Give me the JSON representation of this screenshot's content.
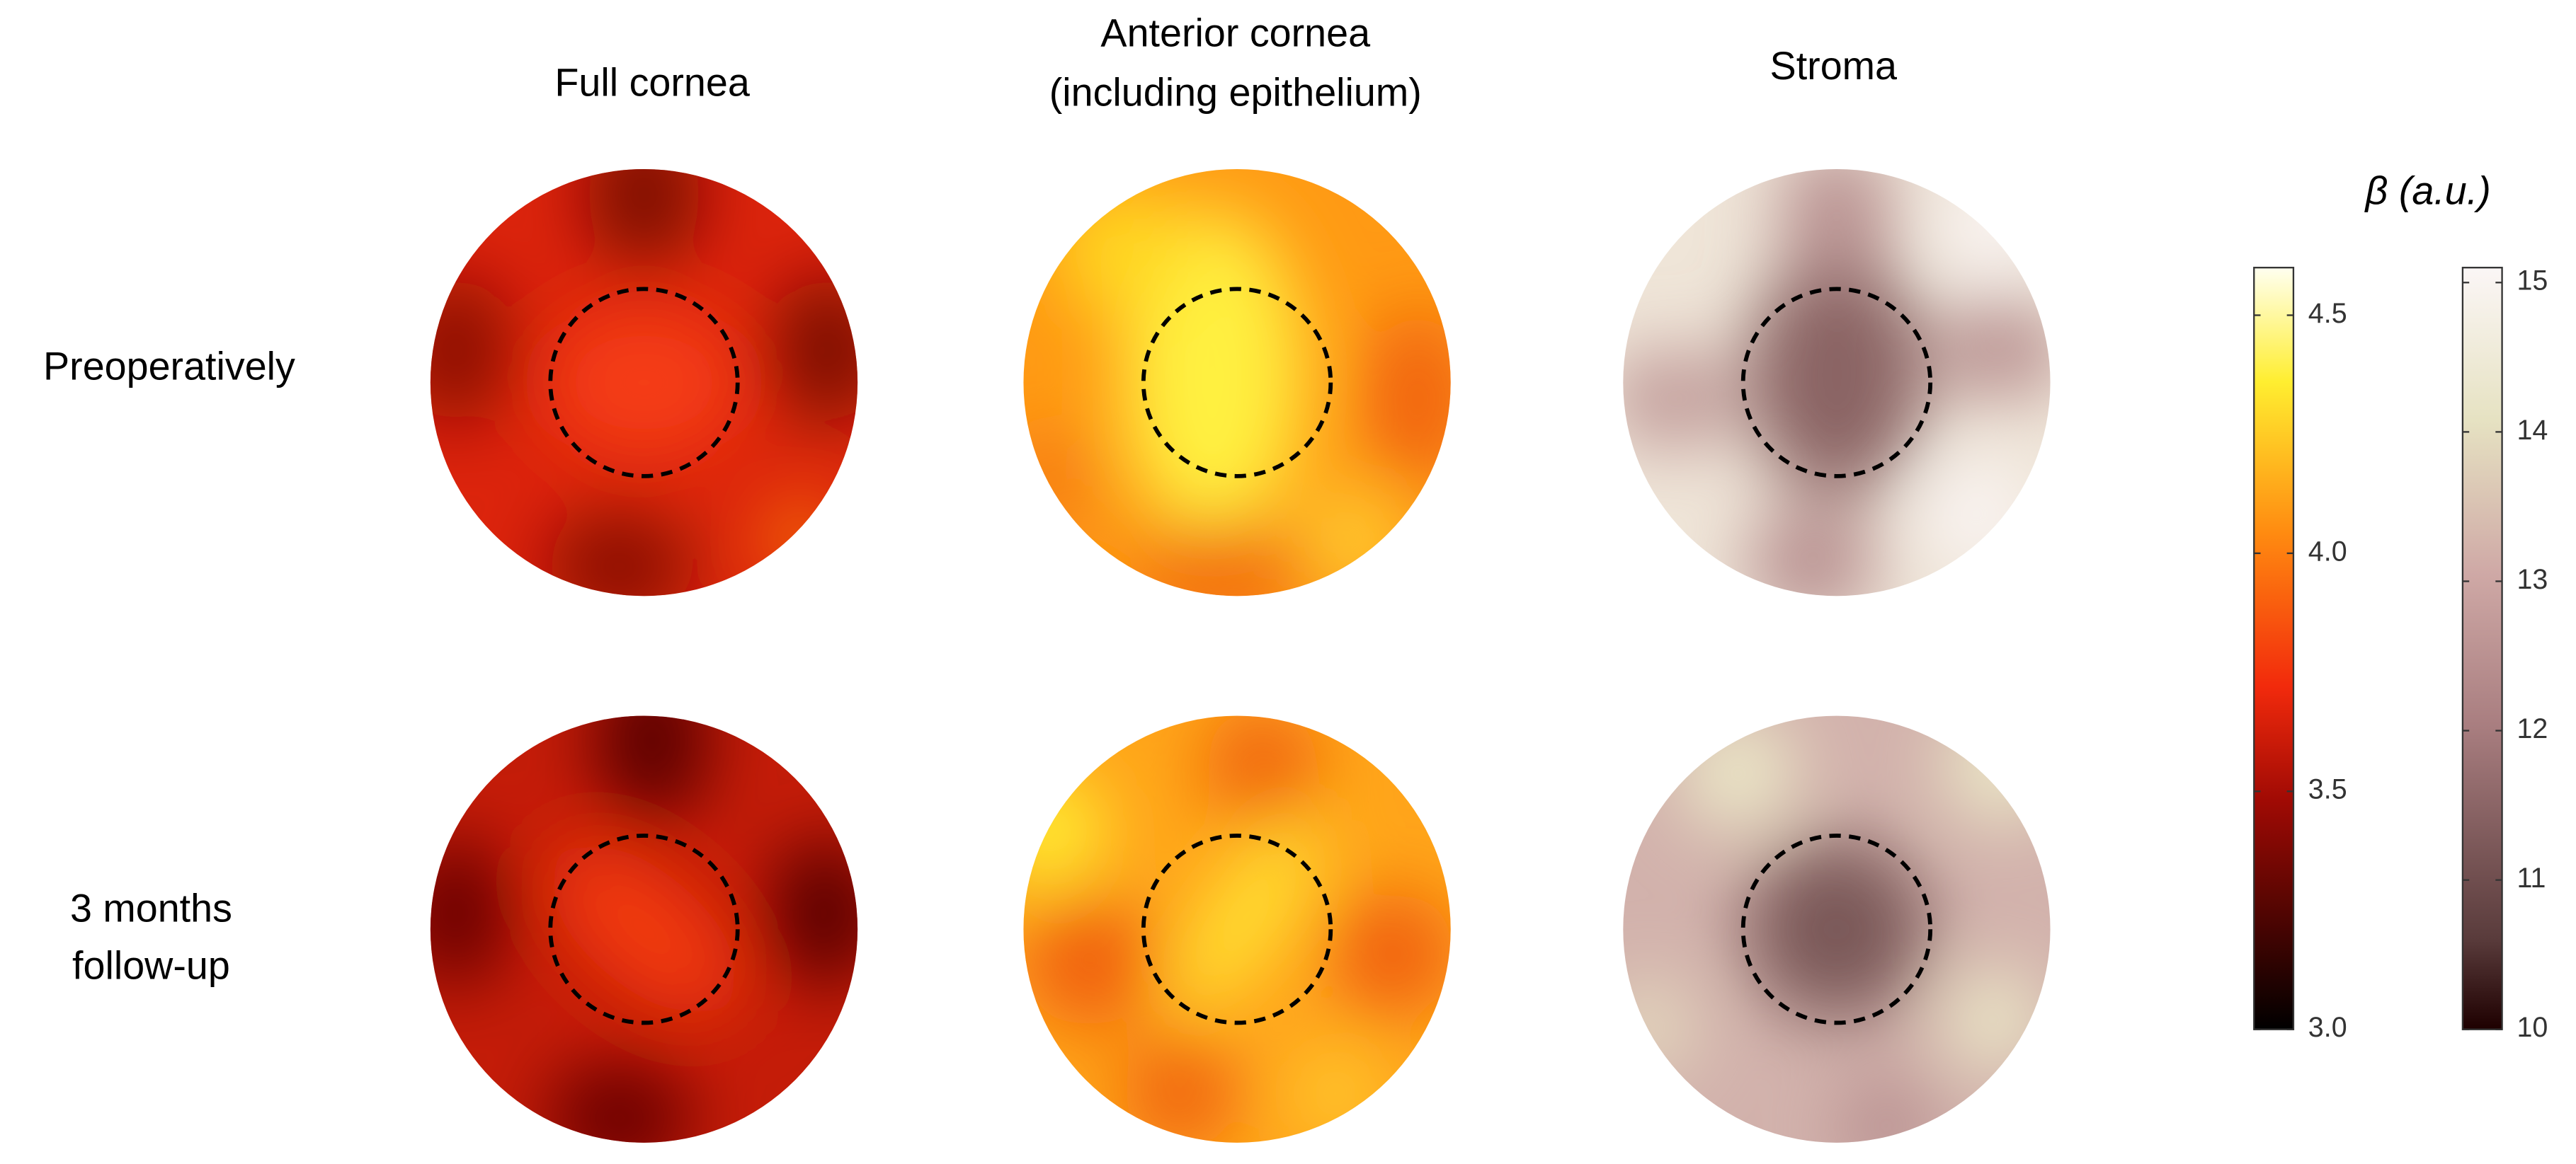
{
  "columns": [
    "Full cornea",
    [
      "Anterior cornea",
      "(including epithelium)"
    ],
    "Stroma"
  ],
  "rows": [
    [
      "Preoperatively"
    ],
    [
      "3 months",
      "follow-up"
    ]
  ],
  "colorbar_title": "β (a.u.)",
  "colorbars": [
    {
      "lim": [
        3.0,
        4.6
      ],
      "ticks": [
        {
          "value": 3,
          "label": "3.0"
        },
        3.5,
        {
          "value": 4,
          "label": "4.0"
        },
        4.5
      ]
    },
    {
      "lim": [
        10,
        15.1
      ],
      "ticks": [
        10,
        11,
        12,
        13,
        14,
        15
      ]
    }
  ]
}
